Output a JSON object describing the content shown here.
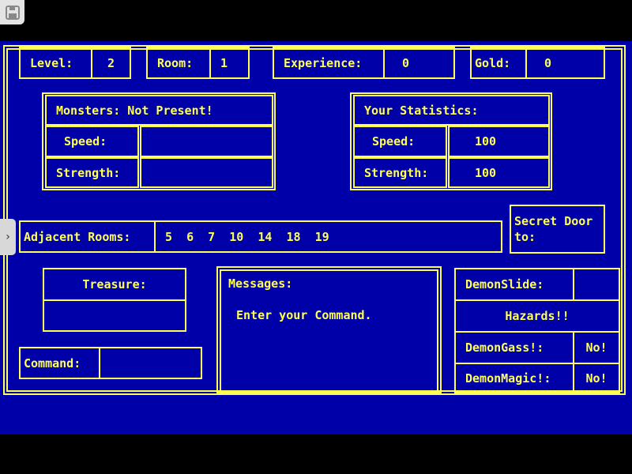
{
  "colors": {
    "background": "#0000a8",
    "text": "#ffff55"
  },
  "top": {
    "level_label": "Level:",
    "level": "2",
    "room_label": "Room:",
    "room": "1",
    "experience_label": "Experience:",
    "experience": "0",
    "gold_label": "Gold:",
    "gold": "0"
  },
  "monsters": {
    "header": "Monsters: Not Present!",
    "speed_label": "Speed:",
    "speed": "",
    "strength_label": "Strength:",
    "strength": ""
  },
  "stats": {
    "header": "Your Statistics:",
    "speed_label": "Speed:",
    "speed": "100",
    "strength_label": "Strength:",
    "strength": "100"
  },
  "adjacent": {
    "label": "Adjacent Rooms:",
    "rooms": "5  6  7  10  14  18  19"
  },
  "secret_door": {
    "label": "Secret Door\nto:"
  },
  "treasure": {
    "label": "Treasure:",
    "value": ""
  },
  "command": {
    "label": "Command:",
    "value": ""
  },
  "messages": {
    "label": "Messages:",
    "text": "Enter your Command."
  },
  "hazards": {
    "demonslide_label": "DemonSlide:",
    "demonslide": "",
    "title": "Hazards!!",
    "demongass_label": "DemonGass!:",
    "demongass": "No!",
    "demonmagic_label": "DemonMagic!:",
    "demonmagic": "No!"
  }
}
